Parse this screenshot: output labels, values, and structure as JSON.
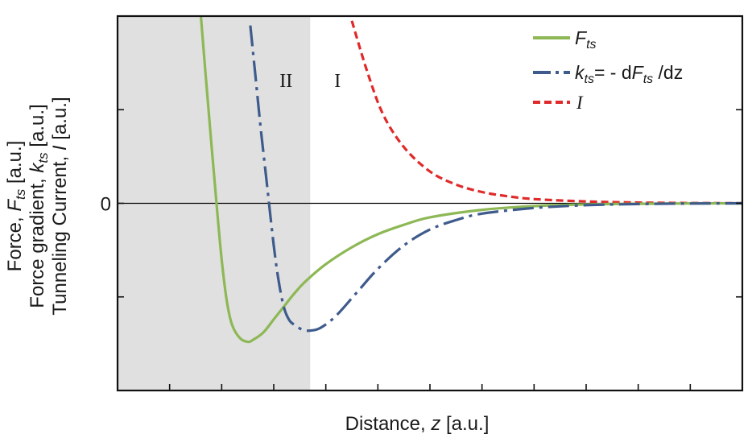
{
  "chart_data": {
    "type": "line",
    "xlabel": "Distance, z [a.u.]",
    "ylabel_lines": [
      "Force, F_ts [a.u.]",
      "Force gradient, k_ts [a.u.]",
      "Tunneling Current, I [a.u.]"
    ],
    "xlim": [
      0,
      12
    ],
    "ylim": [
      -2,
      2
    ],
    "y_tick_label": "0",
    "grid": false,
    "legend_position": "top-right",
    "regions": [
      {
        "label": "II",
        "x_range": [
          0,
          3.7
        ],
        "shaded": true,
        "color": "#e0e0e0"
      },
      {
        "label": "I",
        "x_range": [
          3.7,
          12
        ],
        "shaded": false
      }
    ],
    "series": [
      {
        "key": "F",
        "name": "F_ts",
        "legend_label": "F_ts",
        "color": "#8db855",
        "dash": "solid",
        "x": [
          1.6,
          1.75,
          1.9,
          2.0,
          2.1,
          2.2,
          2.35,
          2.5,
          2.6,
          2.8,
          3.0,
          3.2,
          3.4,
          3.6,
          4.0,
          4.5,
          5.0,
          5.5,
          6.0,
          7.0,
          8.0,
          9.0,
          10.0,
          11.0,
          12.0
        ],
        "y": [
          2.0,
          0.98,
          0.0,
          -0.6,
          -1.05,
          -1.3,
          -1.44,
          -1.48,
          -1.46,
          -1.38,
          -1.24,
          -1.1,
          -0.96,
          -0.84,
          -0.65,
          -0.47,
          -0.33,
          -0.23,
          -0.15,
          -0.07,
          -0.03,
          -0.012,
          -0.005,
          -0.002,
          0.0
        ]
      },
      {
        "key": "K",
        "name": "k_ts = -dF_ts/dz",
        "legend_label": "k_ts= - dF_ts /dz",
        "color": "#3e5b8c",
        "dash": "dash-dot",
        "x": [
          2.55,
          2.65,
          2.75,
          2.85,
          3.0,
          3.1,
          3.2,
          3.3,
          3.4,
          3.55,
          3.7,
          3.9,
          4.2,
          4.6,
          5.0,
          5.5,
          6.0,
          6.5,
          7.0,
          8.0,
          9.0,
          10.0,
          11.0,
          12.0
        ],
        "y": [
          1.9,
          1.35,
          0.8,
          0.3,
          -0.45,
          -0.85,
          -1.12,
          -1.25,
          -1.3,
          -1.35,
          -1.36,
          -1.33,
          -1.2,
          -0.95,
          -0.7,
          -0.45,
          -0.28,
          -0.18,
          -0.11,
          -0.05,
          -0.02,
          -0.008,
          -0.003,
          0.0
        ]
      },
      {
        "key": "I",
        "name": "I",
        "legend_label": "I",
        "color": "#e02a2a",
        "dash": "dashed",
        "x": [
          4.5,
          4.8,
          5.1,
          5.5,
          6.0,
          6.5,
          7.0,
          7.5,
          8.0,
          9.0,
          10.0,
          11.0,
          12.0
        ],
        "y": [
          1.95,
          1.4,
          0.95,
          0.6,
          0.34,
          0.2,
          0.12,
          0.075,
          0.045,
          0.02,
          0.008,
          0.003,
          0.001
        ]
      }
    ]
  }
}
